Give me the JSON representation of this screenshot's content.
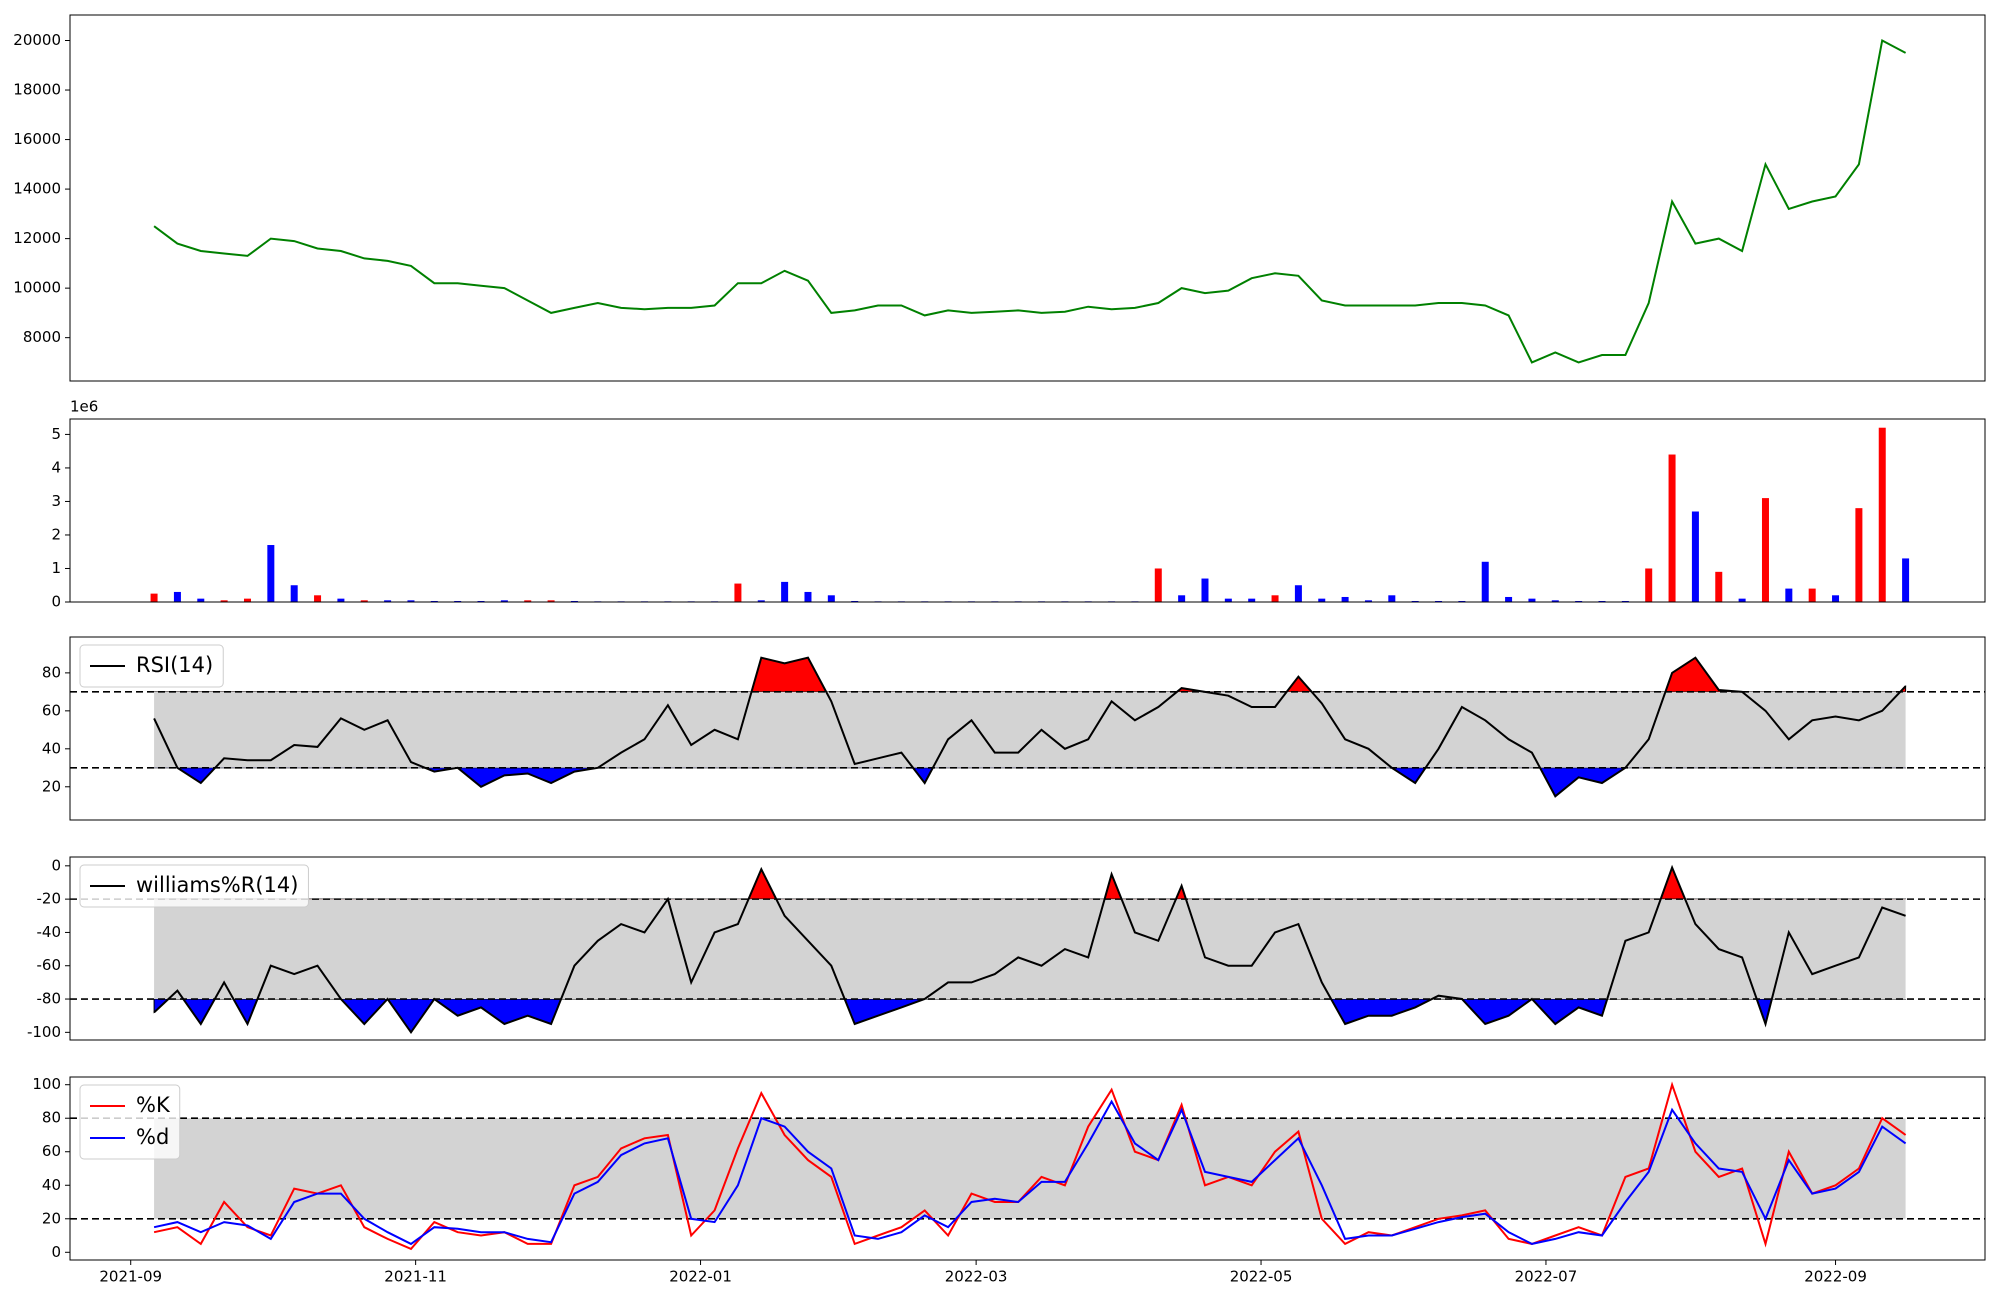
{
  "chart_data": {
    "type": "panels",
    "x": [
      18876,
      18881,
      18886,
      18891,
      18896,
      18901,
      18906,
      18911,
      18916,
      18921,
      18926,
      18931,
      18936,
      18941,
      18946,
      18951,
      18956,
      18961,
      18966,
      18971,
      18976,
      18981,
      18986,
      18991,
      18996,
      19001,
      19006,
      19011,
      19016,
      19021,
      19026,
      19031,
      19036,
      19041,
      19046,
      19051,
      19056,
      19061,
      19066,
      19071,
      19076,
      19081,
      19086,
      19091,
      19096,
      19101,
      19106,
      19111,
      19116,
      19121,
      19126,
      19131,
      19136,
      19141,
      19146,
      19151,
      19156,
      19161,
      19166,
      19171,
      19176,
      19181,
      19186,
      19191,
      19196,
      19201,
      19206,
      19211,
      19216,
      19221,
      19226,
      19231,
      19236,
      19241,
      19246,
      19251
    ],
    "xlim": [
      18858,
      19268
    ],
    "xticks": [
      {
        "value": 18871,
        "label": "2021-09"
      },
      {
        "value": 18932,
        "label": "2021-11"
      },
      {
        "value": 18993,
        "label": "2022-01"
      },
      {
        "value": 19052,
        "label": "2022-03"
      },
      {
        "value": 19113,
        "label": "2022-05"
      },
      {
        "value": 19174,
        "label": "2022-07"
      },
      {
        "value": 19236,
        "label": "2022-09"
      }
    ],
    "panels": [
      {
        "type": "line",
        "ylim": [
          6250,
          21030
        ],
        "yticks": [
          8000,
          10000,
          12000,
          14000,
          16000,
          18000,
          20000
        ],
        "series": [
          {
            "color": "green",
            "values": [
              12500,
              11800,
              11500,
              11400,
              11300,
              12000,
              11900,
              11600,
              11500,
              11200,
              11100,
              10900,
              10200,
              10200,
              10100,
              10000,
              9500,
              9000,
              9200,
              9400,
              9200,
              9150,
              9200,
              9200,
              9300,
              10200,
              10200,
              10700,
              10300,
              9000,
              9100,
              9300,
              9300,
              8900,
              9100,
              9000,
              9050,
              9100,
              9000,
              9050,
              9250,
              9150,
              9200,
              9400,
              10000,
              9800,
              9900,
              10400,
              10600,
              10500,
              9500,
              9300,
              9300,
              9300,
              9300,
              9400,
              9400,
              9300,
              8900,
              7000,
              7400,
              7000,
              7300,
              7300,
              9400,
              13500,
              11800,
              12000,
              11500,
              15000,
              13200,
              13500,
              13700,
              15000,
              20000,
              19500
            ]
          }
        ]
      },
      {
        "type": "bar",
        "ylim": [
          0,
          5.46
        ],
        "yticks": [
          0,
          1,
          2,
          3,
          4,
          5
        ],
        "offset_label": "1e6",
        "values": [
          0.25,
          0.3,
          0.1,
          0.05,
          0.1,
          1.7,
          0.5,
          0.2,
          0.1,
          0.05,
          0.05,
          0.05,
          0.03,
          0.03,
          0.03,
          0.05,
          0.05,
          0.05,
          0.03,
          0.02,
          0.02,
          0.02,
          0.02,
          0.02,
          0.02,
          0.55,
          0.05,
          0.6,
          0.3,
          0.2,
          0.03,
          0.02,
          0.02,
          0.02,
          0.02,
          0.02,
          0.02,
          0.02,
          0.02,
          0.02,
          0.02,
          0.02,
          0.02,
          1.0,
          0.2,
          0.7,
          0.1,
          0.1,
          0.2,
          0.5,
          0.1,
          0.15,
          0.05,
          0.2,
          0.03,
          0.03,
          0.03,
          1.2,
          0.15,
          0.1,
          0.05,
          0.03,
          0.03,
          0.03,
          1.0,
          4.4,
          2.7,
          0.9,
          0.1,
          3.1,
          0.4,
          0.4,
          0.2,
          2.8,
          5.2,
          1.3
        ],
        "colors": [
          "red",
          "blue",
          "blue",
          "red",
          "red",
          "blue",
          "blue",
          "red",
          "blue",
          "red",
          "blue",
          "blue",
          "blue",
          "blue",
          "blue",
          "blue",
          "red",
          "red",
          "blue",
          "blue",
          "blue",
          "blue",
          "blue",
          "blue",
          "blue",
          "red",
          "blue",
          "blue",
          "blue",
          "blue",
          "blue",
          "blue",
          "blue",
          "blue",
          "blue",
          "blue",
          "blue",
          "blue",
          "blue",
          "blue",
          "blue",
          "blue",
          "blue",
          "red",
          "blue",
          "blue",
          "blue",
          "blue",
          "red",
          "blue",
          "blue",
          "blue",
          "blue",
          "blue",
          "blue",
          "blue",
          "blue",
          "blue",
          "blue",
          "blue",
          "blue",
          "blue",
          "blue",
          "blue",
          "red",
          "red",
          "blue",
          "red",
          "blue",
          "red",
          "blue",
          "red",
          "blue",
          "red",
          "red",
          "blue"
        ]
      },
      {
        "type": "oscillator",
        "ylim": [
          2.5,
          98.9
        ],
        "yticks": [
          20,
          40,
          60,
          80
        ],
        "levels": [
          30,
          70
        ],
        "band_color": "lightgray",
        "above_color": "red",
        "below_color": "blue",
        "legend": "upper left",
        "series": [
          {
            "name": "RSI(14)",
            "color": "black",
            "values": [
              56,
              30,
              22,
              35,
              34,
              34,
              42,
              41,
              56,
              50,
              55,
              33,
              28,
              30,
              20,
              26,
              27,
              22,
              28,
              30,
              38,
              45,
              63,
              42,
              50,
              45,
              88,
              85,
              88,
              65,
              32,
              35,
              38,
              22,
              45,
              55,
              38,
              38,
              50,
              40,
              45,
              65,
              55,
              62,
              72,
              70,
              68,
              62,
              62,
              78,
              64,
              45,
              40,
              30,
              22,
              40,
              62,
              55,
              45,
              38,
              15,
              25,
              22,
              30,
              45,
              80,
              88,
              71,
              70,
              60,
              45,
              55,
              57,
              55,
              60,
              73
            ]
          }
        ]
      },
      {
        "type": "oscillator",
        "ylim": [
          -104.6,
          5.3
        ],
        "yticks": [
          -100,
          -80,
          -60,
          -40,
          -20,
          0
        ],
        "levels": [
          -80,
          -20
        ],
        "band_color": "lightgray",
        "above_color": "red",
        "below_color": "blue",
        "legend": "upper left",
        "series": [
          {
            "name": "williams%R(14)",
            "color": "black",
            "values": [
              -88,
              -75,
              -95,
              -70,
              -95,
              -60,
              -65,
              -60,
              -80,
              -95,
              -80,
              -100,
              -80,
              -90,
              -85,
              -95,
              -90,
              -95,
              -60,
              -45,
              -35,
              -40,
              -20,
              -70,
              -40,
              -35,
              -2,
              -30,
              -45,
              -60,
              -95,
              -90,
              -85,
              -80,
              -70,
              -70,
              -65,
              -55,
              -60,
              -50,
              -55,
              -5,
              -40,
              -45,
              -12,
              -55,
              -60,
              -60,
              -40,
              -35,
              -70,
              -95,
              -90,
              -90,
              -85,
              -78,
              -80,
              -95,
              -90,
              -80,
              -95,
              -85,
              -90,
              -45,
              -40,
              -1,
              -35,
              -50,
              -55,
              -95,
              -40,
              -65,
              -60,
              -55,
              -25,
              -30
            ]
          }
        ]
      },
      {
        "type": "oscillator",
        "ylim": [
          -4.6,
          104.6
        ],
        "yticks": [
          0,
          20,
          40,
          60,
          80,
          100
        ],
        "levels": [
          20,
          80
        ],
        "band_color": "lightgray",
        "legend": "upper left",
        "series": [
          {
            "name": "%K",
            "color": "red",
            "values": [
              12,
              15,
              5,
              30,
              15,
              10,
              38,
              35,
              40,
              15,
              8,
              2,
              18,
              12,
              10,
              12,
              5,
              5,
              40,
              45,
              62,
              68,
              70,
              10,
              25,
              62,
              95,
              70,
              55,
              45,
              5,
              10,
              15,
              25,
              10,
              35,
              30,
              30,
              45,
              40,
              75,
              97,
              60,
              55,
              88,
              40,
              45,
              40,
              60,
              72,
              20,
              5,
              12,
              10,
              15,
              20,
              22,
              25,
              8,
              5,
              10,
              15,
              10,
              45,
              50,
              100,
              60,
              45,
              50,
              5,
              60,
              35,
              40,
              50,
              80,
              70
            ]
          },
          {
            "name": "%d",
            "color": "blue",
            "values": [
              15,
              18,
              12,
              18,
              16,
              8,
              30,
              35,
              35,
              20,
              12,
              5,
              15,
              14,
              12,
              12,
              8,
              6,
              35,
              42,
              58,
              65,
              68,
              20,
              18,
              40,
              80,
              75,
              60,
              50,
              10,
              8,
              12,
              22,
              15,
              30,
              32,
              30,
              42,
              42,
              65,
              90,
              65,
              55,
              85,
              48,
              45,
              42,
              55,
              68,
              40,
              8,
              10,
              10,
              14,
              18,
              21,
              23,
              12,
              5,
              8,
              12,
              10,
              30,
              48,
              85,
              65,
              50,
              48,
              20,
              55,
              35,
              38,
              48,
              75,
              65
            ]
          }
        ]
      }
    ]
  }
}
